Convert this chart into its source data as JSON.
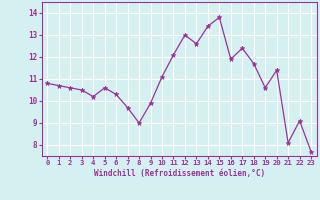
{
  "x": [
    0,
    1,
    2,
    3,
    4,
    5,
    6,
    7,
    8,
    9,
    10,
    11,
    12,
    13,
    14,
    15,
    16,
    17,
    18,
    19,
    20,
    21,
    22,
    23
  ],
  "y": [
    10.8,
    10.7,
    10.6,
    10.5,
    10.2,
    10.6,
    10.3,
    9.7,
    9.0,
    9.9,
    11.1,
    12.1,
    13.0,
    12.6,
    13.4,
    13.8,
    11.9,
    12.4,
    11.7,
    10.6,
    11.4,
    8.1,
    9.1,
    7.7
  ],
  "line_color": "#993399",
  "marker": "*",
  "marker_size": 3.5,
  "background_color": "#d5f0f0",
  "grid_color": "#ffffff",
  "xlabel": "Windchill (Refroidissement éolien,°C)",
  "xlabel_color": "#993399",
  "tick_color": "#993399",
  "ylim": [
    7.5,
    14.5
  ],
  "xlim": [
    -0.5,
    23.5
  ],
  "yticks": [
    8,
    9,
    10,
    11,
    12,
    13,
    14
  ],
  "xticks": [
    0,
    1,
    2,
    3,
    4,
    5,
    6,
    7,
    8,
    9,
    10,
    11,
    12,
    13,
    14,
    15,
    16,
    17,
    18,
    19,
    20,
    21,
    22,
    23
  ],
  "xtick_labels": [
    "0",
    "1",
    "2",
    "3",
    "4",
    "5",
    "6",
    "7",
    "8",
    "9",
    "10",
    "11",
    "12",
    "13",
    "14",
    "15",
    "16",
    "17",
    "18",
    "19",
    "20",
    "21",
    "22",
    "23"
  ]
}
